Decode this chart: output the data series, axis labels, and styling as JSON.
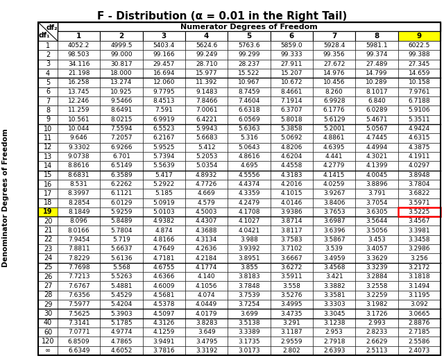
{
  "title": "F - Distribution (α = 0.01 in the Right Tail)",
  "col_header_label": "Numerator Degrees of Freedom",
  "row_header_label": "Denominator Degrees of Freedom",
  "col_headers": [
    "1",
    "2",
    "3",
    "4",
    "5",
    "6",
    "7",
    "8",
    "9"
  ],
  "row_headers": [
    "1",
    "2",
    "3",
    "4",
    "5",
    "6",
    "7",
    "8",
    "9",
    "10",
    "11",
    "12",
    "13",
    "14",
    "15",
    "16",
    "17",
    "18",
    "19",
    "20",
    "21",
    "22",
    "23",
    "24",
    "25",
    "26",
    "27",
    "28",
    "29",
    "30",
    "40",
    "60",
    "120",
    "∞"
  ],
  "data": [
    [
      4052.2,
      4999.5,
      5403.4,
      5624.6,
      5763.6,
      5859.0,
      5928.4,
      5981.1,
      6022.5
    ],
    [
      98.503,
      99.0,
      99.166,
      99.249,
      99.299,
      99.333,
      99.356,
      99.374,
      99.388
    ],
    [
      34.116,
      30.817,
      29.457,
      28.71,
      28.237,
      27.911,
      27.672,
      27.489,
      27.345
    ],
    [
      21.198,
      18.0,
      16.694,
      15.977,
      15.522,
      15.207,
      14.976,
      14.799,
      14.659
    ],
    [
      16.258,
      13.274,
      12.06,
      11.392,
      10.967,
      10.672,
      10.456,
      10.289,
      10.158
    ],
    [
      13.745,
      10.925,
      9.7795,
      9.1483,
      8.7459,
      8.4661,
      8.26,
      8.1017,
      7.9761
    ],
    [
      12.246,
      9.5466,
      8.4513,
      7.8466,
      7.4604,
      7.1914,
      6.9928,
      6.84,
      6.7188
    ],
    [
      11.259,
      8.6491,
      7.591,
      7.0061,
      6.6318,
      6.3707,
      6.1776,
      6.0289,
      5.9106
    ],
    [
      10.561,
      8.0215,
      6.9919,
      6.4221,
      6.0569,
      5.8018,
      5.6129,
      5.4671,
      5.3511
    ],
    [
      10.044,
      7.5594,
      6.5523,
      5.9943,
      5.6363,
      5.3858,
      5.2001,
      5.0567,
      4.9424
    ],
    [
      9.646,
      7.2057,
      6.2167,
      5.6683,
      5.316,
      5.0692,
      4.8861,
      4.7445,
      4.6315
    ],
    [
      9.3302,
      6.9266,
      5.9525,
      5.412,
      5.0643,
      4.8206,
      4.6395,
      4.4994,
      4.3875
    ],
    [
      9.0738,
      6.701,
      5.7394,
      5.2053,
      4.8616,
      4.6204,
      4.441,
      4.3021,
      4.1911
    ],
    [
      8.8616,
      6.5149,
      5.5639,
      5.0354,
      4.695,
      4.4558,
      4.2779,
      4.1399,
      4.0297
    ],
    [
      8.6831,
      6.3589,
      5.417,
      4.8932,
      4.5556,
      4.3183,
      4.1415,
      4.0045,
      3.8948
    ],
    [
      8.531,
      6.2262,
      5.2922,
      4.7726,
      4.4374,
      4.2016,
      4.0259,
      3.8896,
      3.7804
    ],
    [
      8.3997,
      6.1121,
      5.185,
      4.669,
      4.3359,
      4.1015,
      3.9267,
      3.791,
      3.6822
    ],
    [
      8.2854,
      6.0129,
      5.0919,
      4.579,
      4.2479,
      4.0146,
      3.8406,
      3.7054,
      3.5971
    ],
    [
      8.1849,
      5.9259,
      5.0103,
      4.5003,
      4.1708,
      3.9386,
      3.7653,
      3.6305,
      3.5225
    ],
    [
      8.096,
      5.8489,
      4.9382,
      4.4307,
      4.1027,
      3.8714,
      3.6987,
      3.5644,
      3.4567
    ],
    [
      8.0166,
      5.7804,
      4.874,
      4.3688,
      4.0421,
      3.8117,
      3.6396,
      3.5056,
      3.3981
    ],
    [
      7.9454,
      5.719,
      4.8166,
      4.3134,
      3.988,
      3.7583,
      3.5867,
      3.453,
      3.3458
    ],
    [
      7.8811,
      5.6637,
      4.7649,
      4.2636,
      3.9392,
      3.7102,
      3.539,
      3.4057,
      3.2986
    ],
    [
      7.8229,
      5.6136,
      4.7181,
      4.2184,
      3.8951,
      3.6667,
      3.4959,
      3.3629,
      3.256
    ],
    [
      7.7698,
      5.568,
      4.6755,
      4.1774,
      3.855,
      3.6272,
      3.4568,
      3.3239,
      3.2172
    ],
    [
      7.7213,
      5.5263,
      4.6366,
      4.14,
      3.8183,
      3.5911,
      3.421,
      3.2884,
      3.1818
    ],
    [
      7.6767,
      5.4881,
      4.6009,
      4.1056,
      3.7848,
      3.558,
      3.3882,
      3.2558,
      3.1494
    ],
    [
      7.6356,
      5.4529,
      4.5681,
      4.074,
      3.7539,
      3.5276,
      3.3581,
      3.2259,
      3.1195
    ],
    [
      7.5977,
      5.4204,
      4.5378,
      4.0449,
      3.7254,
      3.4995,
      3.3303,
      3.1982,
      3.092
    ],
    [
      7.5625,
      5.3903,
      4.5097,
      4.0179,
      3.699,
      3.4735,
      3.3045,
      3.1726,
      3.0665
    ],
    [
      7.3141,
      5.1785,
      4.3126,
      3.8283,
      3.5138,
      3.291,
      3.1238,
      2.993,
      2.8876
    ],
    [
      7.0771,
      4.9774,
      4.1259,
      3.649,
      3.3389,
      3.1187,
      2.953,
      2.8233,
      2.7185
    ],
    [
      6.8509,
      4.7865,
      3.9491,
      3.4795,
      3.1735,
      2.9559,
      2.7918,
      2.6629,
      2.5586
    ],
    [
      6.6349,
      4.6052,
      3.7816,
      3.3192,
      3.0173,
      2.802,
      2.6393,
      2.5113,
      2.4073
    ]
  ],
  "highlight_row": 18,
  "highlight_col": 8,
  "highlight_row_color": "#FFFF00",
  "highlight_col_color": "#FFFF00",
  "highlight_cell_border_color": "#FF0000",
  "background_color": "#FFFFFF",
  "title_fontsize": 11,
  "cell_fontsize": 6.5,
  "header_fontsize": 7.5,
  "num_header_fontsize": 8.0,
  "vert_label_fontsize": 7.5,
  "row_label_fontsize": 7.0,
  "group_boundaries": [
    4,
    9,
    14,
    19,
    24,
    29,
    30
  ]
}
